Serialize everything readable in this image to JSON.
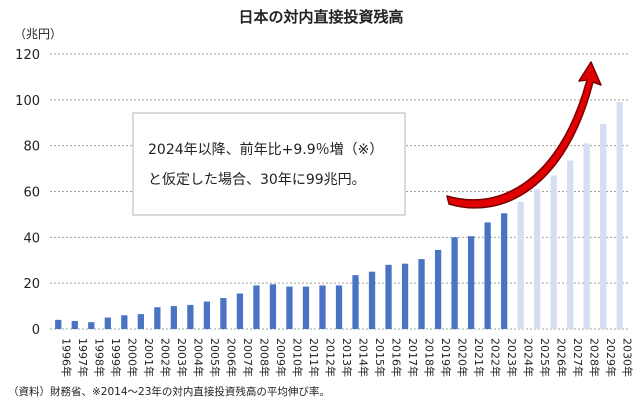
{
  "chart_data": {
    "type": "bar",
    "title": "日本の対内直接投資残高",
    "ylabel": "（兆円）",
    "ylim": [
      0,
      120
    ],
    "yticks": [
      0,
      20,
      40,
      60,
      80,
      100,
      120
    ],
    "grid": true,
    "categories": [
      "1996年",
      "1997年",
      "1998年",
      "1999年",
      "2000年",
      "2001年",
      "2002年",
      "2003年",
      "2004年",
      "2005年",
      "2006年",
      "2007年",
      "2008年",
      "2009年",
      "2010年",
      "2011年",
      "2012年",
      "2013年",
      "2014年",
      "2015年",
      "2016年",
      "2017年",
      "2018年",
      "2019年",
      "2020年",
      "2021年",
      "2022年",
      "2023年",
      "2024年",
      "2025年",
      "2026年",
      "2027年",
      "2028年",
      "2029年",
      "2030年"
    ],
    "values": [
      4,
      3.5,
      3,
      5,
      6,
      6.5,
      9.5,
      10,
      10.5,
      12,
      13.5,
      15.5,
      19,
      19.5,
      18.5,
      18.5,
      19,
      19,
      23.5,
      25,
      28,
      28.5,
      30.5,
      34.5,
      40,
      40.5,
      46.5,
      50.5,
      55.5,
      61,
      67,
      73.5,
      81,
      89.5,
      99
    ],
    "actual_count": 28,
    "colors": {
      "actual": "#4a73c4",
      "projected": "#d5def2",
      "arrow": "#e00000",
      "grid": "#a0a0a0"
    },
    "annotation": {
      "line1": "2024年以降、前年比+9.9％増（※）",
      "line2": "と仮定した場合、30年に99兆円。"
    },
    "source": "（資料）財務省、※2014～23年の対内直接投資残高の平均伸び率。"
  }
}
